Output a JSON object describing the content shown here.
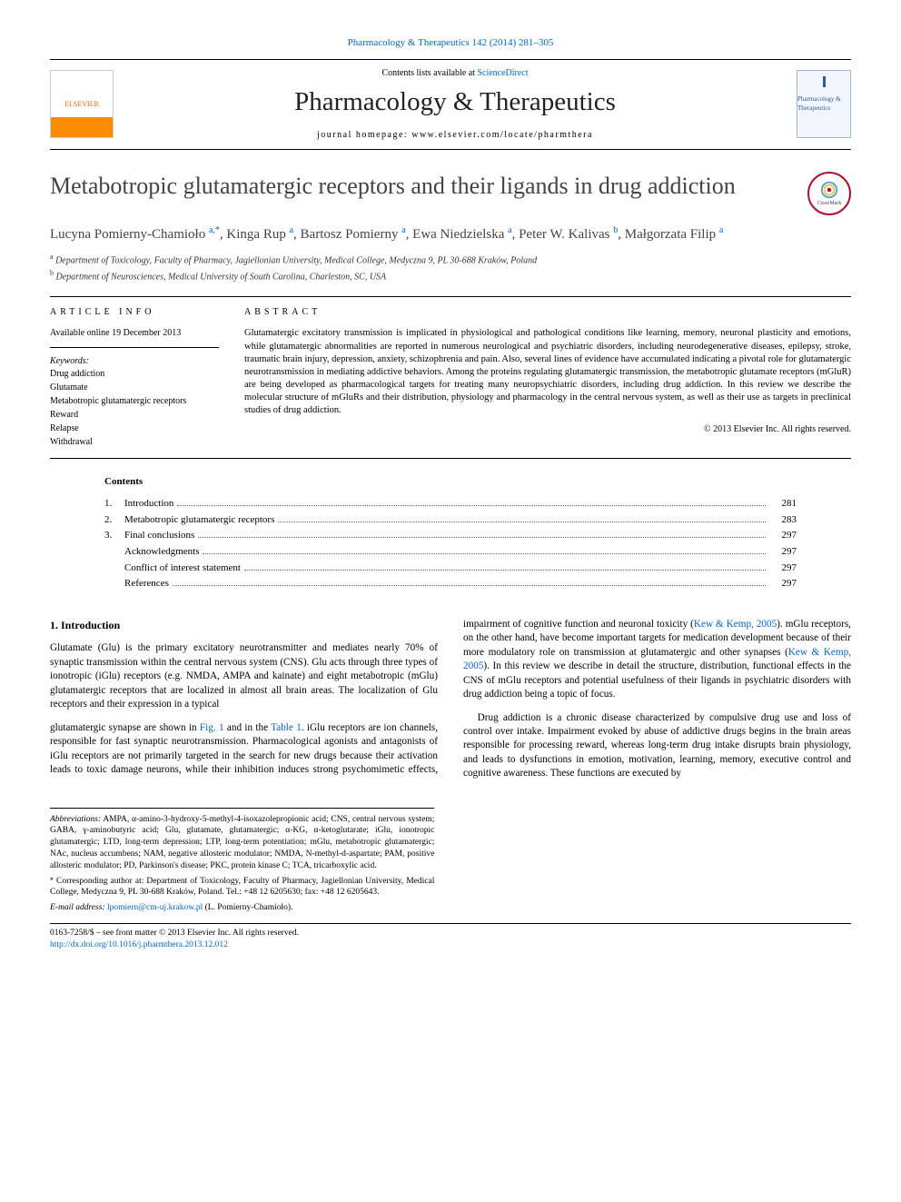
{
  "top_reference": "Pharmacology & Therapeutics 142 (2014) 281–305",
  "contents_line_prefix": "Contents lists available at ",
  "contents_line_link": "ScienceDirect",
  "journal_name": "Pharmacology & Therapeutics",
  "homepage_prefix": "journal homepage: ",
  "homepage_url": "www.elsevier.com/locate/pharmthera",
  "publisher_logo_text": "ELSEVIER",
  "cover_text": "Pharmacology & Therapeutics",
  "article_title": "Metabotropic glutamatergic receptors and their ligands in drug addiction",
  "crossmark_label": "CrossMark",
  "authors_html": "Lucyna Pomierny-Chamioło <sup>a,*</sup>, Kinga Rup <sup>a</sup>, Bartosz Pomierny <sup>a</sup>, Ewa Niedzielska <sup>a</sup>, Peter W. Kalivas <sup>b</sup>, Małgorzata Filip <sup>a</sup>",
  "affiliations": [
    {
      "sup": "a",
      "text": "Department of Toxicology, Faculty of Pharmacy, Jagiellonian University, Medical College, Medyczna 9, PL 30-688 Kraków, Poland"
    },
    {
      "sup": "b",
      "text": "Department of Neurosciences, Medical University of South Carolina, Charleston, SC, USA"
    }
  ],
  "info_heading": "article info",
  "abstract_heading": "abstract",
  "available_online": "Available online 19 December 2013",
  "keywords_label": "Keywords:",
  "keywords": [
    "Drug addiction",
    "Glutamate",
    "Metabotropic glutamatergic receptors",
    "Reward",
    "Relapse",
    "Withdrawal"
  ],
  "abstract_text": "Glutamatergic excitatory transmission is implicated in physiological and pathological conditions like learning, memory, neuronal plasticity and emotions, while glutamatergic abnormalities are reported in numerous neurological and psychiatric disorders, including neurodegenerative diseases, epilepsy, stroke, traumatic brain injury, depression, anxiety, schizophrenia and pain. Also, several lines of evidence have accumulated indicating a pivotal role for glutamatergic neurotransmission in mediating addictive behaviors. Among the proteins regulating glutamatergic transmission, the metabotropic glutamate receptors (mGluR) are being developed as pharmacological targets for treating many neuropsychiatric disorders, including drug addiction. In this review we describe the molecular structure of mGluRs and their distribution, physiology and pharmacology in the central nervous system, as well as their use as targets in preclinical studies of drug addiction.",
  "copyright_line": "© 2013 Elsevier Inc. All rights reserved.",
  "contents_heading": "Contents",
  "toc": [
    {
      "num": "1.",
      "label": "Introduction",
      "page": "281"
    },
    {
      "num": "2.",
      "label": "Metabotropic glutamatergic receptors",
      "page": "283"
    },
    {
      "num": "3.",
      "label": "Final conclusions",
      "page": "297"
    },
    {
      "num": "",
      "label": "Acknowledgments",
      "page": "297"
    },
    {
      "num": "",
      "label": "Conflict of interest statement",
      "page": "297"
    },
    {
      "num": "",
      "label": "References",
      "page": "297"
    }
  ],
  "section1_heading": "1. Introduction",
  "col_left_p1": "Glutamate (Glu) is the primary excitatory neurotransmitter and mediates nearly 70% of synaptic transmission within the central nervous system (CNS). Glu acts through three types of ionotropic (iGlu) receptors (e.g. NMDA, AMPA and kainate) and eight metabotropic (mGlu) glutamatergic receptors that are localized in almost all brain areas. The localization of Glu receptors and their expression in a typical",
  "col_right_p1_pre": "glutamatergic synapse are shown in ",
  "col_right_p1_fig": "Fig. 1",
  "col_right_p1_mid": " and in the ",
  "col_right_p1_tab": "Table 1",
  "col_right_p1_post": ". iGlu receptors are ion channels, responsible for fast synaptic neurotransmission. Pharmacological agonists and antagonists of iGlu receptors are not primarily targeted in the search for new drugs because their activation leads to toxic damage neurons, while their inhibition induces strong psychomimetic effects, impairment of cognitive function and neuronal toxicity (",
  "col_right_p1_ref1": "Kew & Kemp, 2005",
  "col_right_p1_post2": "). mGlu receptors, on the other hand, have become important targets for medication development because of their more modulatory role on transmission at glutamatergic and other synapses (",
  "col_right_p1_ref2": "Kew & Kemp, 2005",
  "col_right_p1_post3": "). In this review we describe in detail the structure, distribution, functional effects in the CNS of mGlu receptors and potential usefulness of their ligands in psychiatric disorders with drug addiction being a topic of focus.",
  "col_right_p2": "Drug addiction is a chronic disease characterized by compulsive drug use and loss of control over intake. Impairment evoked by abuse of addictive drugs begins in the brain areas responsible for processing reward, whereas long-term drug intake disrupts brain physiology, and leads to dysfunctions in emotion, motivation, learning, memory, executive control and cognitive awareness. These functions are executed by",
  "abbrev_label": "Abbreviations:",
  "abbrev_text": " AMPA, α-amino-3-hydroxy-5-methyl-4-isoxazolepropionic acid; CNS, central nervous system; GABA, γ-aminobutyric acid; Glu, glutamate, glutamatergic; α-KG, α-ketoglutarate; iGlu, ionotropic glutamatergic; LTD, long-term depression; LTP, long-term potentiation; mGlu, metabotropic glutamatergic; NAc, nucleus accumbens; NAM, negative allosteric modulator; NMDA, N-methyl-d-aspartate; PAM, positive allosteric modulator; PD, Parkinson's disease; PKC, protein kinase C; TCA, tricarboxylic acid.",
  "corr_label": "* ",
  "corr_text": "Corresponding author at: Department of Toxicology, Faculty of Pharmacy, Jagiellonian University, Medical College, Medyczna 9, PL 30-688 Kraków, Poland. Tel.: +48 12 6205630; fax: +48 12 6205643.",
  "email_label": "E-mail address: ",
  "email_addr": "lpomiern@cm-uj.krakow.pl",
  "email_who": " (L. Pomierny-Chamioło).",
  "issn_line": "0163-7258/$ – see front matter © 2013 Elsevier Inc. All rights reserved.",
  "doi_url": "http://dx.doi.org/10.1016/j.pharmthera.2013.12.012",
  "colors": {
    "link": "#0066cc",
    "text": "#000000",
    "title": "#444444",
    "elsevier_orange": "#ff8c00",
    "crossmark_ring": "#b01030"
  }
}
